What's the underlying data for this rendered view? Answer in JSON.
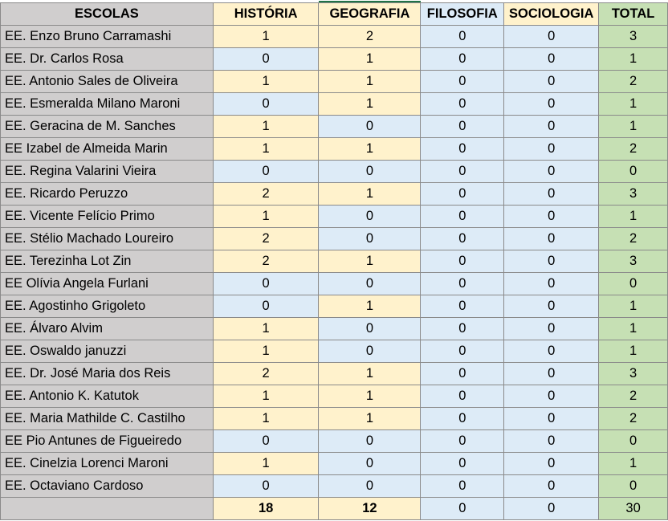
{
  "headers": [
    "ESCOLAS",
    "HISTÓRIA",
    "GEOGRAFIA",
    "FILOSOFIA",
    "SOCIOLOGIA",
    "TOTAL"
  ],
  "rows": [
    {
      "escola": "EE. Enzo Bruno Carramashi",
      "historia": 1,
      "geografia": 2,
      "filosofia": 0,
      "sociologia": 0,
      "total": 3
    },
    {
      "escola": "EE. Dr. Carlos Rosa",
      "historia": 0,
      "geografia": 1,
      "filosofia": 0,
      "sociologia": 0,
      "total": 1
    },
    {
      "escola": "EE. Antonio Sales de Oliveira",
      "historia": 1,
      "geografia": 1,
      "filosofia": 0,
      "sociologia": 0,
      "total": 2
    },
    {
      "escola": "EE. Esmeralda Milano Maroni",
      "historia": 0,
      "geografia": 1,
      "filosofia": 0,
      "sociologia": 0,
      "total": 1
    },
    {
      "escola": "EE. Geracina de M. Sanches",
      "historia": 1,
      "geografia": 0,
      "filosofia": 0,
      "sociologia": 0,
      "total": 1
    },
    {
      "escola": "EE Izabel de Almeida Marin",
      "historia": 1,
      "geografia": 1,
      "filosofia": 0,
      "sociologia": 0,
      "total": 2
    },
    {
      "escola": "EE. Regina Valarini Vieira",
      "historia": 0,
      "geografia": 0,
      "filosofia": 0,
      "sociologia": 0,
      "total": 0
    },
    {
      "escola": "EE. Ricardo Peruzzo",
      "historia": 2,
      "geografia": 1,
      "filosofia": 0,
      "sociologia": 0,
      "total": 3
    },
    {
      "escola": "EE. Vicente Felício Primo",
      "historia": 1,
      "geografia": 0,
      "filosofia": 0,
      "sociologia": 0,
      "total": 1
    },
    {
      "escola": "EE. Stélio Machado Loureiro",
      "historia": 2,
      "geografia": 0,
      "filosofia": 0,
      "sociologia": 0,
      "total": 2
    },
    {
      "escola": "EE. Terezinha Lot Zin",
      "historia": 2,
      "geografia": 1,
      "filosofia": 0,
      "sociologia": 0,
      "total": 3
    },
    {
      "escola": "EE Olívia Angela Furlani",
      "historia": 0,
      "geografia": 0,
      "filosofia": 0,
      "sociologia": 0,
      "total": 0
    },
    {
      "escola": "EE. Agostinho Grigoleto",
      "historia": 0,
      "geografia": 1,
      "filosofia": 0,
      "sociologia": 0,
      "total": 1
    },
    {
      "escola": "EE. Álvaro Alvim",
      "historia": 1,
      "geografia": 0,
      "filosofia": 0,
      "sociologia": 0,
      "total": 1
    },
    {
      "escola": "EE. Oswaldo januzzi",
      "historia": 1,
      "geografia": 0,
      "filosofia": 0,
      "sociologia": 0,
      "total": 1
    },
    {
      "escola": "EE. Dr. José Maria dos Reis",
      "historia": 2,
      "geografia": 1,
      "filosofia": 0,
      "sociologia": 0,
      "total": 3
    },
    {
      "escola": "EE. Antonio K. Katutok",
      "historia": 1,
      "geografia": 1,
      "filosofia": 0,
      "sociologia": 0,
      "total": 2
    },
    {
      "escola": "EE. Maria Mathilde C. Castilho",
      "historia": 1,
      "geografia": 1,
      "filosofia": 0,
      "sociologia": 0,
      "total": 2
    },
    {
      "escola": "EE Pio Antunes de Figueiredo",
      "historia": 0,
      "geografia": 0,
      "filosofia": 0,
      "sociologia": 0,
      "total": 0
    },
    {
      "escola": "EE. Cinelzia Lorenci Maroni",
      "historia": 1,
      "geografia": 0,
      "filosofia": 0,
      "sociologia": 0,
      "total": 1
    },
    {
      "escola": "EE. Octaviano Cardoso",
      "historia": 0,
      "geografia": 0,
      "filosofia": 0,
      "sociologia": 0,
      "total": 0
    }
  ],
  "totals": {
    "escola": "",
    "historia": 18,
    "geografia": 12,
    "filosofia": 0,
    "sociologia": 0,
    "total": 30
  },
  "colors": {
    "name": "#d0cece",
    "positive": "#fff2cc",
    "zero": "#ddebf7",
    "total": "#c6e0b4",
    "selection": "#217346"
  }
}
